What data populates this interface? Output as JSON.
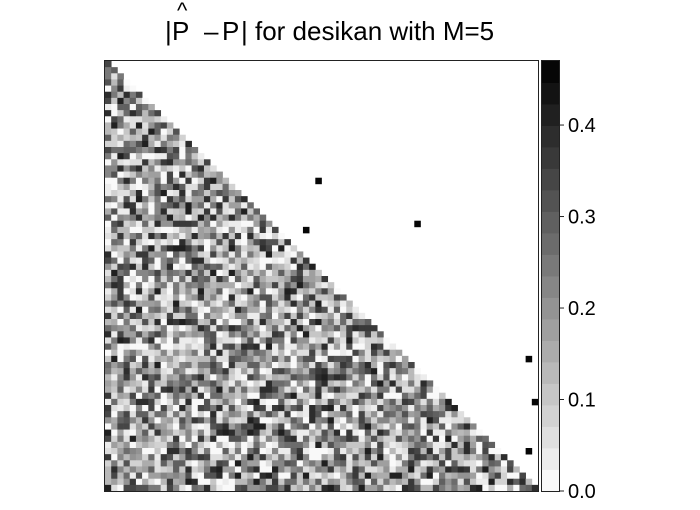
{
  "chart_data": {
    "type": "heatmap",
    "title": "|P̂ − P| for desikan with M=5",
    "title_parts": {
      "bar_left": "|",
      "p_hat": "P",
      "hat": "^",
      "minus": "–",
      "p": "P",
      "rest": "| for desikan with M=5"
    },
    "matrix_size": 70,
    "structure": "lower-triangular (including diagonal); upper triangle blank except a few isolated outlier cells",
    "seed": 20231105,
    "value_range": [
      0,
      0.47
    ],
    "colormap": {
      "low": "#ffffff",
      "high": "#000000",
      "steps": 20
    },
    "upper_outliers": [
      {
        "row": 19,
        "col": 34,
        "value": 0.45
      },
      {
        "row": 26,
        "col": 50,
        "value": 0.45
      },
      {
        "row": 27,
        "col": 32,
        "value": 0.45
      },
      {
        "row": 48,
        "col": 68,
        "value": 0.45
      },
      {
        "row": 55,
        "col": 69,
        "value": 0.45
      },
      {
        "row": 63,
        "col": 68,
        "value": 0.45
      }
    ],
    "colorbar": {
      "ticks": [
        0.0,
        0.1,
        0.2,
        0.3,
        0.4
      ],
      "tick_labels": [
        "0.0",
        "0.1",
        "0.2",
        "0.3",
        "0.4"
      ],
      "min": 0,
      "max": 0.47
    },
    "xlabel": "",
    "ylabel": ""
  }
}
